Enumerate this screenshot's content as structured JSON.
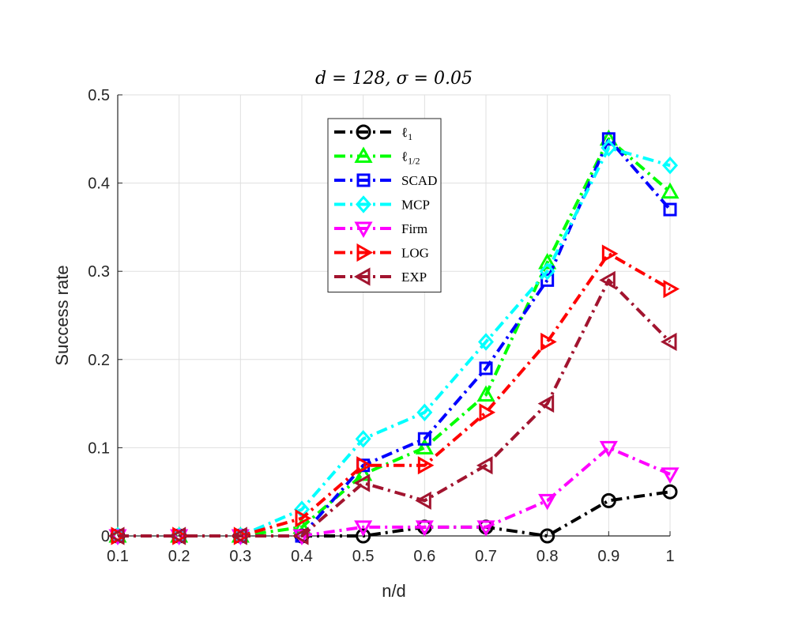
{
  "chart_data": {
    "type": "line",
    "title": "d = 128, σ = 0.05",
    "xlabel": "n/d",
    "ylabel": "Success rate",
    "x": [
      0.1,
      0.2,
      0.3,
      0.4,
      0.5,
      0.6,
      0.7,
      0.8,
      0.9,
      1
    ],
    "xlim": [
      0.1,
      1
    ],
    "ylim": [
      0,
      0.5
    ],
    "x_ticks": [
      "0.1",
      "0.2",
      "0.3",
      "0.4",
      "0.5",
      "0.6",
      "0.7",
      "0.8",
      "0.9",
      "1"
    ],
    "y_ticks": [
      "0",
      "0.1",
      "0.2",
      "0.3",
      "0.4",
      "0.5"
    ],
    "grid": true,
    "legend_position": "top-center",
    "series": [
      {
        "name": "ℓ1",
        "color": "#000000",
        "marker": "circle",
        "values": [
          0,
          0,
          0,
          0,
          0,
          0.01,
          0.01,
          0,
          0.04,
          0.05
        ]
      },
      {
        "name": "ℓ1/2",
        "color": "#00ff00",
        "marker": "triangle-up",
        "values": [
          0,
          0,
          0,
          0.01,
          0.07,
          0.1,
          0.16,
          0.31,
          0.45,
          0.39
        ]
      },
      {
        "name": "SCAD",
        "color": "#0000ff",
        "marker": "square",
        "values": [
          0,
          0,
          0,
          0,
          0.08,
          0.11,
          0.19,
          0.29,
          0.45,
          0.37
        ]
      },
      {
        "name": "MCP",
        "color": "#00ffff",
        "marker": "diamond",
        "values": [
          0,
          0,
          0,
          0.03,
          0.11,
          0.14,
          0.22,
          0.3,
          0.44,
          0.42
        ]
      },
      {
        "name": "Firm",
        "color": "#ff00ff",
        "marker": "triangle-down",
        "values": [
          0,
          0,
          0,
          0,
          0.01,
          0.01,
          0.01,
          0.04,
          0.1,
          0.07
        ]
      },
      {
        "name": "LOG",
        "color": "#ff0000",
        "marker": "triangle-right",
        "values": [
          0,
          0,
          0,
          0.02,
          0.08,
          0.08,
          0.14,
          0.22,
          0.32,
          0.28
        ]
      },
      {
        "name": "EXP",
        "color": "#a2142f",
        "marker": "triangle-left",
        "values": [
          0,
          0,
          0,
          0,
          0.06,
          0.04,
          0.08,
          0.15,
          0.29,
          0.22
        ]
      }
    ]
  }
}
